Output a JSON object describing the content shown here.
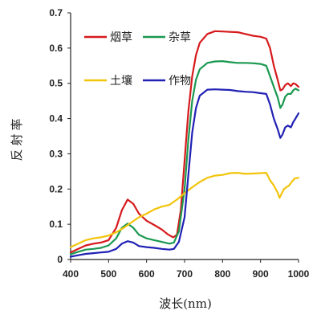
{
  "chart_data": {
    "type": "line",
    "xlabel": "波长(nm)",
    "ylabel": "反射率",
    "xlim": [
      400,
      1000
    ],
    "ylim": [
      0,
      0.7
    ],
    "xticks": [
      "400",
      "500",
      "600",
      "700",
      "800",
      "900",
      "1000"
    ],
    "yticks": [
      "0",
      "0.1",
      "0.2",
      "0.3",
      "0.4",
      "0.5",
      "0.6",
      "0.7"
    ],
    "grid": false,
    "legend_position": "top-left",
    "series": [
      {
        "name": "烟草",
        "color": "#d7191c",
        "points": [
          [
            400,
            0.02
          ],
          [
            420,
            0.03
          ],
          [
            440,
            0.04
          ],
          [
            460,
            0.045
          ],
          [
            480,
            0.048
          ],
          [
            500,
            0.055
          ],
          [
            520,
            0.09
          ],
          [
            535,
            0.14
          ],
          [
            550,
            0.17
          ],
          [
            565,
            0.158
          ],
          [
            580,
            0.13
          ],
          [
            600,
            0.11
          ],
          [
            620,
            0.098
          ],
          [
            640,
            0.085
          ],
          [
            655,
            0.072
          ],
          [
            670,
            0.063
          ],
          [
            680,
            0.07
          ],
          [
            690,
            0.14
          ],
          [
            700,
            0.28
          ],
          [
            710,
            0.42
          ],
          [
            720,
            0.52
          ],
          [
            730,
            0.58
          ],
          [
            740,
            0.615
          ],
          [
            760,
            0.64
          ],
          [
            780,
            0.648
          ],
          [
            800,
            0.647
          ],
          [
            820,
            0.646
          ],
          [
            840,
            0.645
          ],
          [
            860,
            0.64
          ],
          [
            880,
            0.635
          ],
          [
            900,
            0.632
          ],
          [
            915,
            0.627
          ],
          [
            925,
            0.6
          ],
          [
            935,
            0.55
          ],
          [
            945,
            0.51
          ],
          [
            952,
            0.48
          ],
          [
            958,
            0.483
          ],
          [
            965,
            0.495
          ],
          [
            972,
            0.5
          ],
          [
            980,
            0.492
          ],
          [
            986,
            0.5
          ],
          [
            992,
            0.498
          ],
          [
            1000,
            0.49
          ]
        ]
      },
      {
        "name": "杂草",
        "color": "#1a9850",
        "points": [
          [
            400,
            0.015
          ],
          [
            420,
            0.022
          ],
          [
            440,
            0.028
          ],
          [
            460,
            0.03
          ],
          [
            480,
            0.033
          ],
          [
            500,
            0.04
          ],
          [
            520,
            0.06
          ],
          [
            535,
            0.09
          ],
          [
            550,
            0.102
          ],
          [
            565,
            0.09
          ],
          [
            580,
            0.07
          ],
          [
            600,
            0.06
          ],
          [
            620,
            0.055
          ],
          [
            640,
            0.05
          ],
          [
            660,
            0.045
          ],
          [
            672,
            0.048
          ],
          [
            685,
            0.08
          ],
          [
            700,
            0.2
          ],
          [
            710,
            0.34
          ],
          [
            720,
            0.45
          ],
          [
            730,
            0.51
          ],
          [
            740,
            0.54
          ],
          [
            760,
            0.558
          ],
          [
            780,
            0.562
          ],
          [
            800,
            0.563
          ],
          [
            820,
            0.56
          ],
          [
            840,
            0.558
          ],
          [
            860,
            0.558
          ],
          [
            880,
            0.557
          ],
          [
            900,
            0.555
          ],
          [
            915,
            0.55
          ],
          [
            925,
            0.52
          ],
          [
            935,
            0.49
          ],
          [
            945,
            0.46
          ],
          [
            952,
            0.43
          ],
          [
            958,
            0.44
          ],
          [
            965,
            0.462
          ],
          [
            972,
            0.47
          ],
          [
            980,
            0.47
          ],
          [
            986,
            0.48
          ],
          [
            992,
            0.485
          ],
          [
            1000,
            0.48
          ]
        ]
      },
      {
        "name": "土壤",
        "color": "#f2c40a",
        "points": [
          [
            400,
            0.035
          ],
          [
            420,
            0.045
          ],
          [
            440,
            0.055
          ],
          [
            460,
            0.06
          ],
          [
            480,
            0.063
          ],
          [
            500,
            0.068
          ],
          [
            520,
            0.077
          ],
          [
            540,
            0.09
          ],
          [
            560,
            0.105
          ],
          [
            580,
            0.12
          ],
          [
            600,
            0.13
          ],
          [
            620,
            0.142
          ],
          [
            640,
            0.15
          ],
          [
            660,
            0.155
          ],
          [
            680,
            0.17
          ],
          [
            700,
            0.188
          ],
          [
            720,
            0.205
          ],
          [
            740,
            0.22
          ],
          [
            760,
            0.232
          ],
          [
            780,
            0.238
          ],
          [
            800,
            0.24
          ],
          [
            820,
            0.245
          ],
          [
            840,
            0.246
          ],
          [
            860,
            0.243
          ],
          [
            880,
            0.244
          ],
          [
            900,
            0.245
          ],
          [
            915,
            0.246
          ],
          [
            925,
            0.225
          ],
          [
            935,
            0.21
          ],
          [
            945,
            0.19
          ],
          [
            950,
            0.175
          ],
          [
            956,
            0.188
          ],
          [
            962,
            0.2
          ],
          [
            968,
            0.205
          ],
          [
            975,
            0.21
          ],
          [
            982,
            0.22
          ],
          [
            990,
            0.23
          ],
          [
            1000,
            0.232
          ]
        ]
      },
      {
        "name": "作物",
        "color": "#2121b5",
        "points": [
          [
            400,
            0.008
          ],
          [
            420,
            0.012
          ],
          [
            440,
            0.016
          ],
          [
            460,
            0.018
          ],
          [
            480,
            0.02
          ],
          [
            500,
            0.022
          ],
          [
            520,
            0.03
          ],
          [
            535,
            0.045
          ],
          [
            550,
            0.052
          ],
          [
            565,
            0.048
          ],
          [
            580,
            0.038
          ],
          [
            600,
            0.035
          ],
          [
            620,
            0.033
          ],
          [
            640,
            0.03
          ],
          [
            660,
            0.028
          ],
          [
            672,
            0.03
          ],
          [
            685,
            0.05
          ],
          [
            700,
            0.12
          ],
          [
            710,
            0.24
          ],
          [
            720,
            0.36
          ],
          [
            730,
            0.43
          ],
          [
            740,
            0.465
          ],
          [
            760,
            0.482
          ],
          [
            780,
            0.483
          ],
          [
            800,
            0.482
          ],
          [
            820,
            0.481
          ],
          [
            840,
            0.478
          ],
          [
            860,
            0.476
          ],
          [
            880,
            0.475
          ],
          [
            900,
            0.472
          ],
          [
            915,
            0.47
          ],
          [
            925,
            0.44
          ],
          [
            935,
            0.4
          ],
          [
            945,
            0.37
          ],
          [
            952,
            0.345
          ],
          [
            958,
            0.355
          ],
          [
            965,
            0.375
          ],
          [
            972,
            0.38
          ],
          [
            980,
            0.375
          ],
          [
            986,
            0.39
          ],
          [
            992,
            0.4
          ],
          [
            1000,
            0.415
          ]
        ]
      }
    ]
  }
}
